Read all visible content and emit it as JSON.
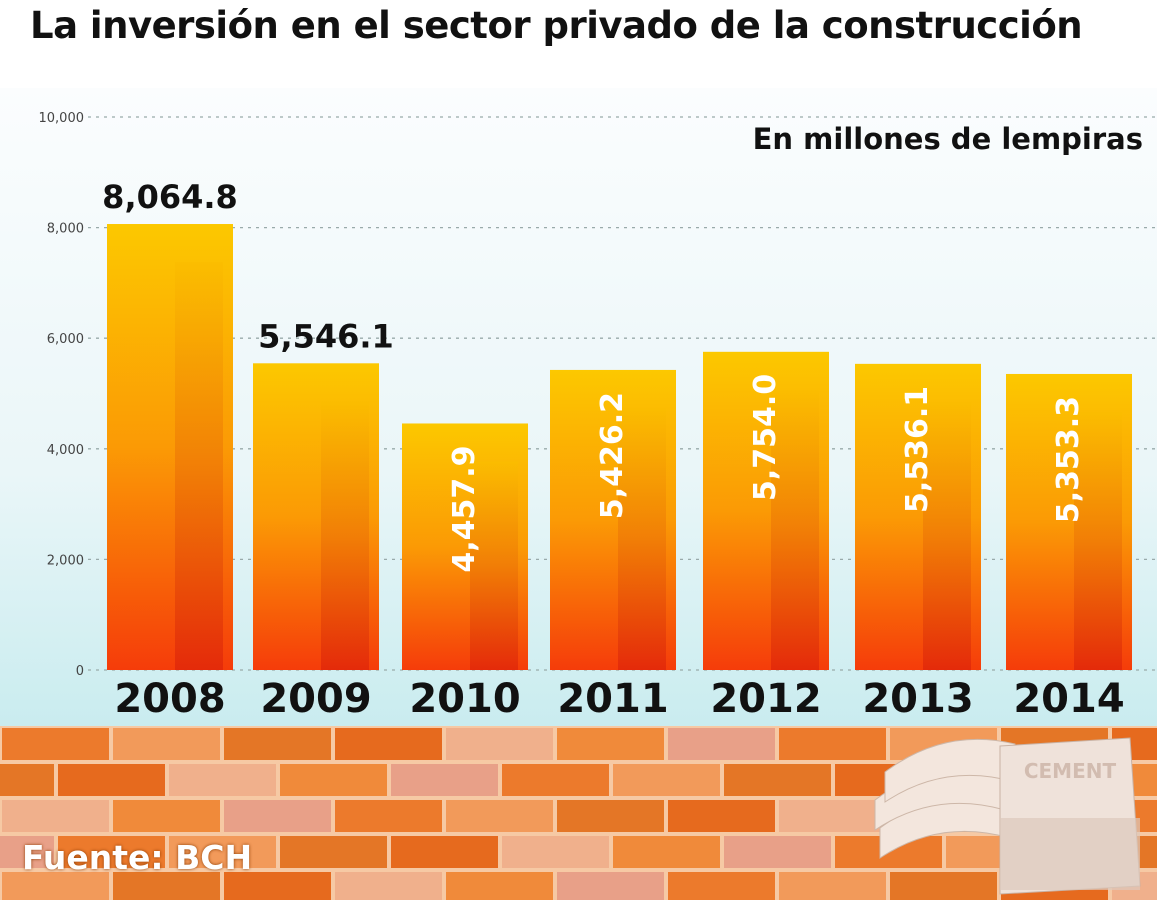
{
  "title": "La inversión en el sector privado de la construcción",
  "unit_label": "En millones de lempiras",
  "source": "Fuente: BCH",
  "illustration_text": "CEMENT",
  "colors": {
    "bar_top": "#fcc800",
    "bar_bottom": "#f53c0a",
    "brick": "#ec7a2c",
    "mortar": "#f6c9a4"
  },
  "chart_data": {
    "type": "bar",
    "title": "La inversión en el sector privado de la construcción",
    "ylabel": "",
    "xlabel": "",
    "categories": [
      "2008",
      "2009",
      "2010",
      "2011",
      "2012",
      "2013",
      "2014"
    ],
    "values": [
      8064.8,
      5546.1,
      4457.9,
      5426.2,
      5754.0,
      5536.1,
      5353.3
    ],
    "value_labels": [
      "8,064.8",
      "5,546.1",
      "4,457.9",
      "5,426.2",
      "5,754.0",
      "5,536.1",
      "5,353.3"
    ],
    "ylim": [
      0,
      10000
    ],
    "yticks": [
      "0",
      "2,000",
      "4,000",
      "6,000",
      "8,000",
      "10,000"
    ],
    "ytick_values": [
      0,
      2000,
      4000,
      6000,
      8000,
      10000
    ],
    "grid": "horizontal dotted",
    "legend": "none"
  }
}
